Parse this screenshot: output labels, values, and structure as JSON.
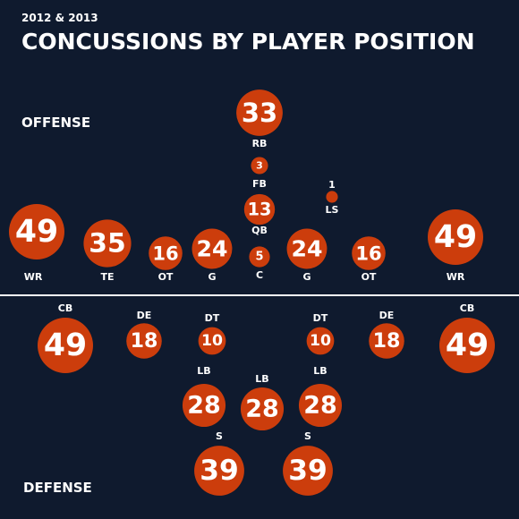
{
  "subtitle": "2012 & 2013",
  "title": "CONCUSSIONS BY PLAYER POSITION",
  "offense_label": "OFFENSE",
  "defense_label": "DEFENSE",
  "colors": {
    "background": "#0f1a2e",
    "bubble": "#cc3d0c",
    "text": "#ffffff",
    "divider": "#ffffff"
  },
  "chart_data": {
    "type": "bubble",
    "series": [
      {
        "name": "OFFENSE",
        "points": [
          {
            "position": "RB",
            "value": 33
          },
          {
            "position": "FB",
            "value": 3
          },
          {
            "position": "QB",
            "value": 13
          },
          {
            "position": "C",
            "value": 5
          },
          {
            "position": "LS",
            "value": 1
          },
          {
            "position": "WR",
            "value": 49
          },
          {
            "position": "TE",
            "value": 35
          },
          {
            "position": "OT",
            "value": 16
          },
          {
            "position": "G",
            "value": 24
          },
          {
            "position": "G",
            "value": 24
          },
          {
            "position": "OT",
            "value": 16
          },
          {
            "position": "WR",
            "value": 49
          }
        ]
      },
      {
        "name": "DEFENSE",
        "points": [
          {
            "position": "CB",
            "value": 49
          },
          {
            "position": "DE",
            "value": 18
          },
          {
            "position": "DT",
            "value": 10
          },
          {
            "position": "DT",
            "value": 10
          },
          {
            "position": "DE",
            "value": 18
          },
          {
            "position": "CB",
            "value": 49
          },
          {
            "position": "LB",
            "value": 28
          },
          {
            "position": "LB",
            "value": 28
          },
          {
            "position": "LB",
            "value": 28
          },
          {
            "position": "S",
            "value": 39
          },
          {
            "position": "S",
            "value": 39
          }
        ]
      }
    ]
  }
}
